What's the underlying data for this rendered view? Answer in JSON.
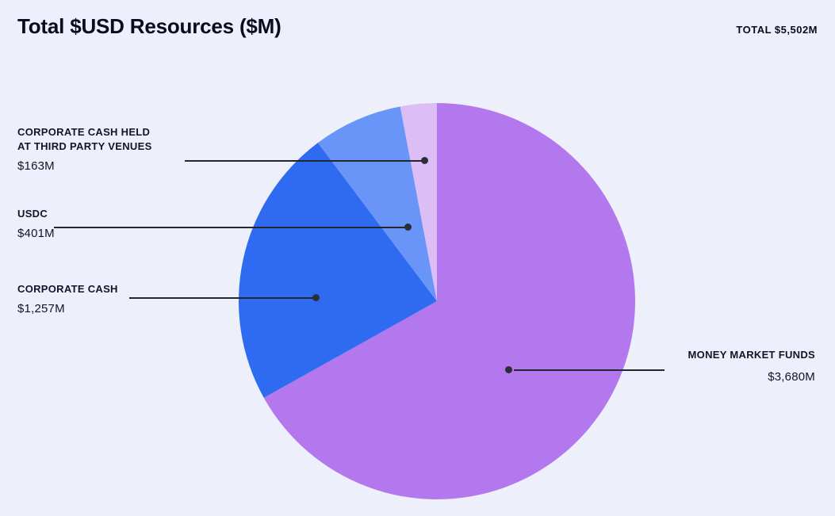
{
  "header": {
    "title": "Total $USD Resources ($M)",
    "total": "TOTAL $5,502M"
  },
  "chart_data": {
    "type": "pie",
    "title": "Total $USD Resources ($M)",
    "total_display": "$5,502M",
    "total_value_musd": 5502,
    "start_angle_deg": 0,
    "direction": "clockwise",
    "legend_position": "callouts",
    "background_color": "#edf0fa",
    "segments": [
      {
        "label": "MONEY MARKET FUNDS",
        "value": 3680,
        "display_value": "$3,680M",
        "color": "#b478ee"
      },
      {
        "label": "CORPORATE CASH",
        "value": 1257,
        "display_value": "$1,257M",
        "color": "#2e6bf0"
      },
      {
        "label": "USDC",
        "value": 401,
        "display_value": "$401M",
        "color": "#6895f7"
      },
      {
        "label": "CORPORATE CASH HELD AT THIRD PARTY VENUES",
        "label_line1": "CORPORATE CASH HELD",
        "label_line2": "AT THIRD PARTY VENUES",
        "value": 163,
        "display_value": "$163M",
        "color": "#ddbdf6"
      }
    ]
  }
}
